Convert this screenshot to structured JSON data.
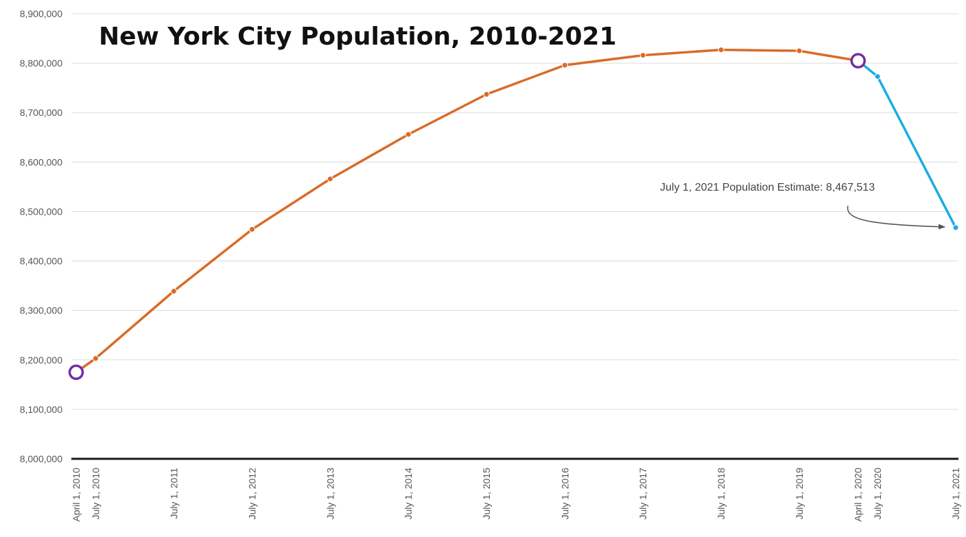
{
  "chart_data": {
    "type": "line",
    "title": "New York City Population, 2010-2021",
    "xlabel": "",
    "ylabel": "",
    "ylim": [
      8000000,
      8900000
    ],
    "y_ticks": [
      "8,000,000",
      "8,100,000",
      "8,200,000",
      "8,300,000",
      "8,400,000",
      "8,500,000",
      "8,600,000",
      "8,700,000",
      "8,800,000",
      "8,900,000"
    ],
    "y_tick_values": [
      8000000,
      8100000,
      8200000,
      8300000,
      8400000,
      8500000,
      8600000,
      8700000,
      8800000,
      8900000
    ],
    "x": [
      "2010-04-01",
      "2010-07-01",
      "2011-07-01",
      "2012-07-01",
      "2013-07-01",
      "2014-07-01",
      "2015-07-01",
      "2016-07-01",
      "2017-07-01",
      "2018-07-01",
      "2019-07-01",
      "2020-04-01",
      "2020-07-01",
      "2021-07-01"
    ],
    "x_labels": [
      "April 1, 2010",
      "July 1, 2010",
      "July 1, 2011",
      "July 1, 2012",
      "July 1, 2013",
      "July 1, 2014",
      "July 1, 2015",
      "July 1, 2016",
      "July 1, 2017",
      "July 1, 2018",
      "July 1, 2019",
      "April 1, 2020",
      "July 1, 2020",
      "July 1, 2021"
    ],
    "series": [
      {
        "x": [
          "2010-04-01",
          "2010-07-01",
          "2011-07-01",
          "2012-07-01",
          "2013-07-01",
          "2014-07-01",
          "2015-07-01",
          "2016-07-01",
          "2017-07-01",
          "2018-07-01",
          "2019-07-01",
          "2020-04-01"
        ],
        "values": [
          8175000,
          8203000,
          8339000,
          8464000,
          8566000,
          8656000,
          8737000,
          8796000,
          8816000,
          8827000,
          8825000,
          8805000
        ],
        "color": "#d96b27"
      },
      {
        "x": [
          "2020-04-01",
          "2020-07-01",
          "2021-07-01"
        ],
        "values": [
          8805000,
          8773000,
          8467513
        ],
        "color": "#19ade3"
      }
    ],
    "highlight_points": [
      {
        "x": "2010-04-01",
        "value": 8175000
      },
      {
        "x": "2020-04-01",
        "value": 8805000
      }
    ],
    "highlight_color": "#7030a0",
    "annotation": {
      "text": "July 1, 2021 Population Estimate: 8,467,513",
      "target_x": "2021-07-01",
      "target_value": 8467513
    },
    "grid": true,
    "legend": "none"
  }
}
